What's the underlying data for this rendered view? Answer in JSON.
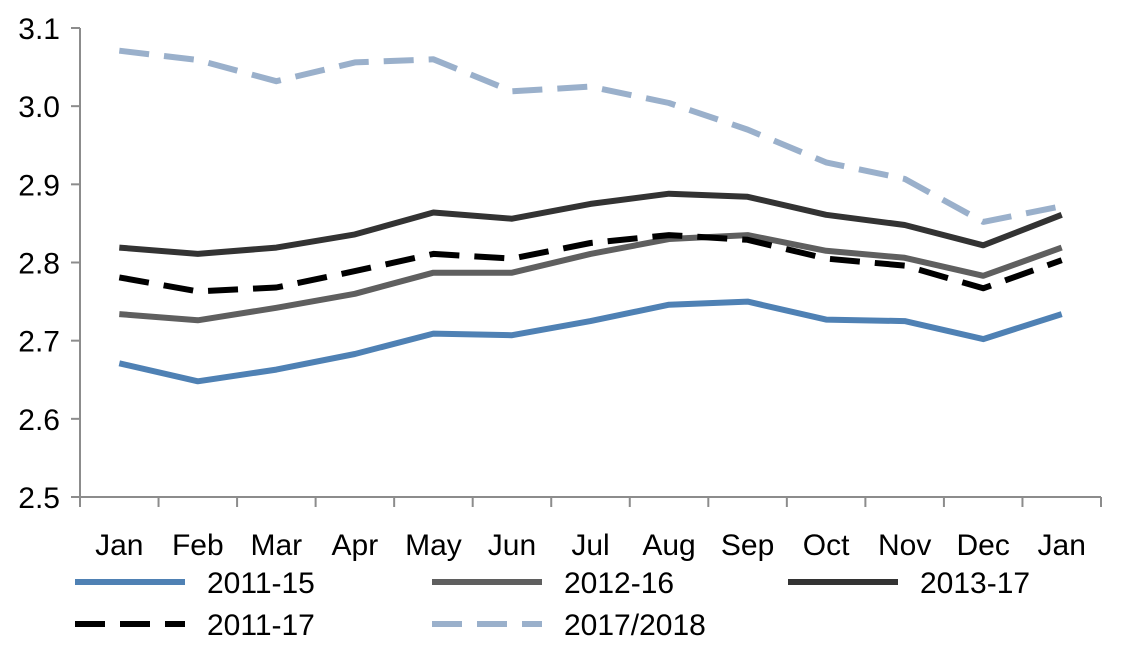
{
  "chart_data": {
    "type": "line",
    "categories": [
      "Jan",
      "Feb",
      "Mar",
      "Apr",
      "May",
      "Jun",
      "Jul",
      "Aug",
      "Sep",
      "Oct",
      "Nov",
      "Dec",
      "Jan"
    ],
    "ylim": [
      2.5,
      3.1
    ],
    "yticks": [
      "2.5",
      "2.6",
      "2.7",
      "2.8",
      "2.9",
      "3.0",
      "3.1"
    ],
    "grid": false,
    "legend_position": "bottom",
    "series": [
      {
        "name": "2011-15",
        "color": "#4f81b4",
        "dash": "solid",
        "values": [
          2.671,
          2.648,
          2.663,
          2.683,
          2.709,
          2.707,
          2.725,
          2.746,
          2.75,
          2.727,
          2.725,
          2.702,
          2.734
        ]
      },
      {
        "name": "2012-16",
        "color": "#5f5f5f",
        "dash": "solid",
        "values": [
          2.734,
          2.726,
          2.742,
          2.76,
          2.787,
          2.787,
          2.811,
          2.83,
          2.835,
          2.815,
          2.806,
          2.783,
          2.819
        ]
      },
      {
        "name": "2013-17",
        "color": "#333333",
        "dash": "solid",
        "values": [
          2.819,
          2.811,
          2.819,
          2.836,
          2.864,
          2.856,
          2.875,
          2.888,
          2.884,
          2.861,
          2.848,
          2.822,
          2.861
        ]
      },
      {
        "name": "2011-17",
        "color": "#000000",
        "dash": "dash",
        "values": [
          2.781,
          2.763,
          2.768,
          2.789,
          2.811,
          2.805,
          2.825,
          2.835,
          2.829,
          2.805,
          2.796,
          2.767,
          2.803
        ]
      },
      {
        "name": "2017/2018",
        "color": "#9ab0cb",
        "dash": "dash",
        "values": [
          3.071,
          3.059,
          3.032,
          3.056,
          3.06,
          3.019,
          3.025,
          3.004,
          2.97,
          2.928,
          2.907,
          2.852,
          2.872
        ]
      }
    ]
  }
}
